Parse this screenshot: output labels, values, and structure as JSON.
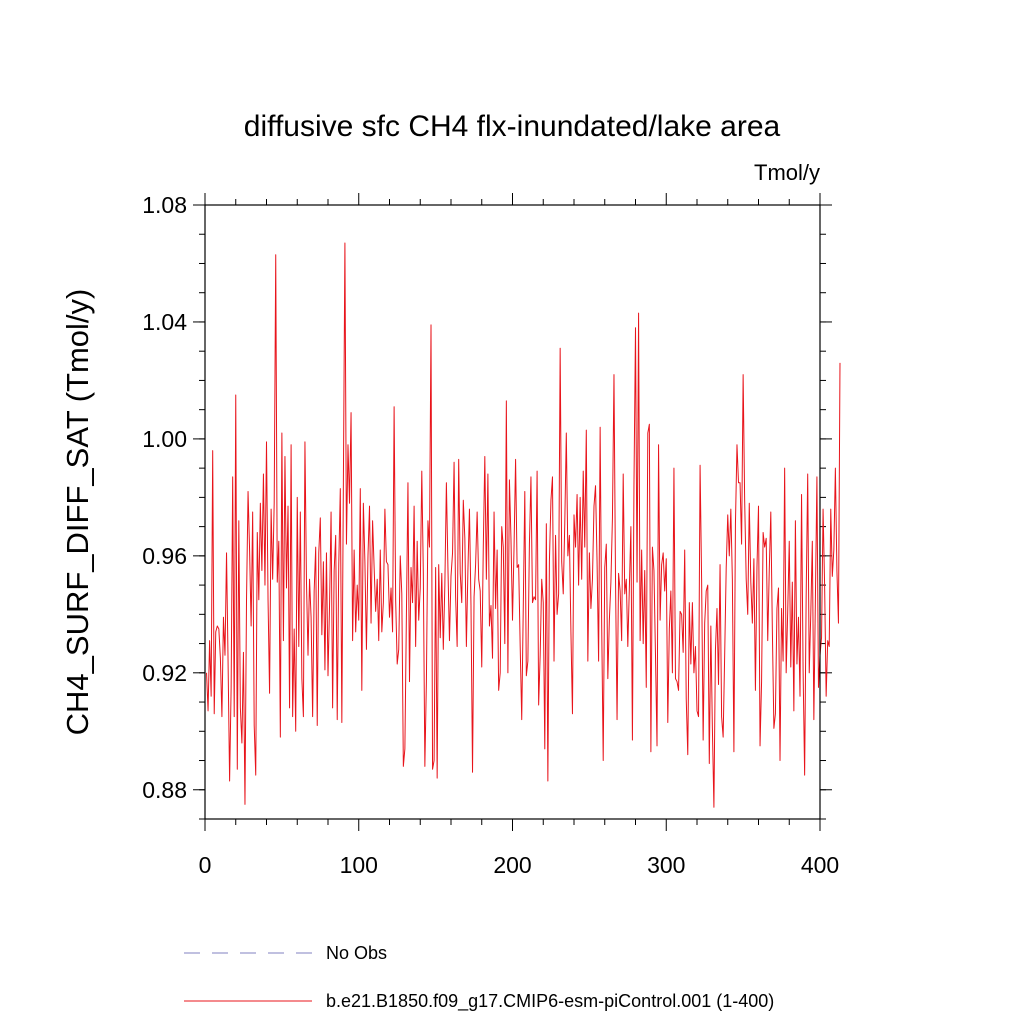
{
  "chart_data": {
    "type": "line",
    "title": "diffusive sfc CH4 flx-inundated/lake area",
    "units": "Tmol/y",
    "ylabel": "CH4_SURF_DIFF_SAT  (Tmol/y)",
    "xlabel": "",
    "xlim": [
      0,
      400
    ],
    "ylim": [
      0.87,
      1.08
    ],
    "x_ticks": [
      0,
      100,
      200,
      300,
      400
    ],
    "x_tick_labels": [
      "0",
      "100",
      "200",
      "300",
      "400"
    ],
    "y_ticks": [
      0.88,
      0.92,
      0.96,
      1.0,
      1.04,
      1.08
    ],
    "y_tick_labels": [
      "0.88",
      "0.92",
      "0.96",
      "1.00",
      "1.04",
      "1.08"
    ],
    "series": [
      {
        "name": "b.e21.B1850.f09_g17.CMIP6-esm-piControl.001 (1-400)",
        "color": "#e8141b",
        "x_start": 1,
        "values": [
          0.92,
          0.907,
          0.931,
          0.912,
          0.996,
          0.906,
          0.934,
          0.936,
          0.935,
          0.925,
          0.905,
          0.939,
          0.926,
          0.961,
          0.924,
          0.883,
          0.915,
          0.987,
          0.905,
          1.015,
          0.887,
          0.972,
          0.908,
          0.896,
          0.927,
          0.875,
          0.945,
          0.982,
          0.962,
          0.936,
          0.975,
          0.902,
          0.885,
          0.968,
          0.945,
          0.978,
          0.955,
          0.988,
          0.95,
          0.999,
          0.945,
          0.913,
          0.976,
          0.952,
          0.978,
          1.063,
          0.951,
          0.965,
          0.898,
          1.002,
          0.931,
          0.994,
          0.949,
          0.977,
          0.908,
          0.998,
          0.905,
          0.935,
          0.9,
          0.98,
          0.929,
          0.975,
          0.918,
          0.905,
          0.999,
          0.951,
          0.926,
          0.952,
          0.939,
          0.905,
          0.948,
          0.963,
          0.902,
          0.961,
          0.973,
          0.933,
          0.958,
          0.921,
          0.961,
          0.919,
          0.943,
          0.975,
          0.908,
          0.955,
          0.967,
          0.904,
          0.957,
          0.983,
          0.903,
          0.985,
          1.067,
          0.964,
          0.998,
          0.978,
          1.009,
          0.931,
          0.962,
          0.934,
          0.95,
          0.938,
          0.983,
          0.914,
          0.978,
          0.958,
          0.928,
          0.96,
          0.977,
          0.937,
          0.972,
          0.956,
          0.941,
          0.952,
          0.931,
          0.962,
          0.934,
          0.944,
          0.976,
          0.958,
          0.957,
          0.939,
          0.949,
          0.934,
          1.011,
          0.945,
          0.923,
          0.928,
          0.96,
          0.947,
          0.888,
          0.894,
          0.94,
          0.985,
          0.917,
          0.956,
          0.944,
          0.977,
          0.929,
          0.965,
          0.938,
          0.949,
          0.989,
          0.954,
          0.888,
          0.917,
          0.972,
          0.963,
          1.039,
          0.887,
          0.89,
          0.956,
          0.884,
          0.957,
          0.932,
          0.954,
          0.928,
          0.95,
          0.985,
          0.956,
          0.931,
          0.953,
          0.961,
          0.992,
          0.946,
          0.929,
          0.993,
          0.954,
          0.944,
          0.979,
          0.966,
          0.929,
          0.955,
          0.976,
          0.943,
          0.886,
          0.946,
          0.957,
          0.975,
          0.952,
          0.948,
          0.922,
          0.963,
          0.994,
          0.952,
          0.988,
          0.936,
          0.943,
          0.925,
          0.975,
          0.942,
          0.962,
          0.914,
          0.92,
          0.97,
          0.963,
          0.93,
          1.013,
          0.92,
          0.986,
          0.966,
          0.938,
          0.963,
          0.993,
          0.956,
          0.957,
          0.929,
          0.904,
          0.942,
          0.982,
          0.919,
          0.924,
          0.964,
          0.987,
          0.944,
          0.946,
          0.945,
          0.989,
          0.909,
          0.926,
          0.952,
          0.944,
          0.894,
          0.971,
          0.883,
          0.958,
          0.979,
          0.987,
          0.924,
          0.967,
          0.94,
          0.947,
          1.031,
          0.958,
          0.947,
          0.971,
          1.002,
          0.96,
          0.967,
          0.934,
          0.906,
          0.974,
          0.963,
          0.981,
          0.95,
          0.98,
          0.952,
          0.989,
          0.963,
          1.003,
          0.924,
          0.961,
          0.942,
          0.952,
          0.977,
          0.984,
          0.958,
          0.924,
          1.004,
          0.937,
          0.89,
          0.956,
          0.964,
          0.918,
          0.938,
          0.951,
          0.973,
          1.022,
          0.952,
          0.904,
          0.954,
          0.948,
          0.931,
          0.988,
          0.947,
          0.952,
          0.929,
          0.949,
          0.97,
          0.897,
          0.984,
          1.038,
          0.951,
          1.043,
          0.931,
          0.962,
          0.93,
          0.955,
          0.915,
          1.002,
          1.005,
          0.893,
          0.963,
          0.955,
          0.926,
          0.895,
          0.998,
          0.938,
          0.957,
          0.961,
          0.948,
          0.959,
          0.903,
          0.935,
          0.948,
          0.92,
          0.99,
          0.918,
          0.917,
          0.914,
          0.941,
          0.94,
          0.927,
          0.962,
          0.911,
          0.892,
          0.944,
          0.923,
          0.944,
          0.92,
          0.929,
          0.907,
          0.905,
          0.991,
          0.952,
          0.897,
          0.937,
          0.948,
          0.95,
          0.889,
          0.936,
          0.901,
          0.874,
          0.928,
          0.942,
          0.916,
          0.957,
          0.905,
          0.898,
          0.926,
          0.956,
          0.974,
          0.96,
          0.976,
          0.952,
          0.893,
          0.971,
          0.998,
          0.985,
          0.985,
          0.964,
          1.022,
          0.979,
          0.952,
          0.94,
          0.978,
          0.951,
          0.937,
          0.959,
          0.914,
          0.956,
          0.977,
          0.895,
          0.917,
          0.968,
          0.963,
          0.966,
          0.931,
          0.955,
          0.975,
          0.935,
          0.901,
          0.906,
          0.942,
          0.949,
          0.89,
          0.942,
          0.924,
          0.99,
          0.92,
          0.941,
          0.965,
          0.922,
          0.951,
          0.907,
          0.972,
          0.923,
          0.939,
          0.912,
          0.981,
          0.921,
          0.885,
          0.946,
          0.988,
          0.92,
          0.94,
          0.965,
          0.904,
          0.945,
          0.987,
          0.915,
          0.926,
          0.932,
          0.976,
          0.95,
          0.912,
          0.931,
          0.929,
          0.976,
          0.953,
          0.962,
          0.99,
          0.955,
          0.937,
          1.026
        ]
      },
      {
        "name": "No Obs",
        "color": "#8080c0",
        "dashed": true,
        "values": []
      }
    ],
    "legend_position": "bottom-left"
  }
}
